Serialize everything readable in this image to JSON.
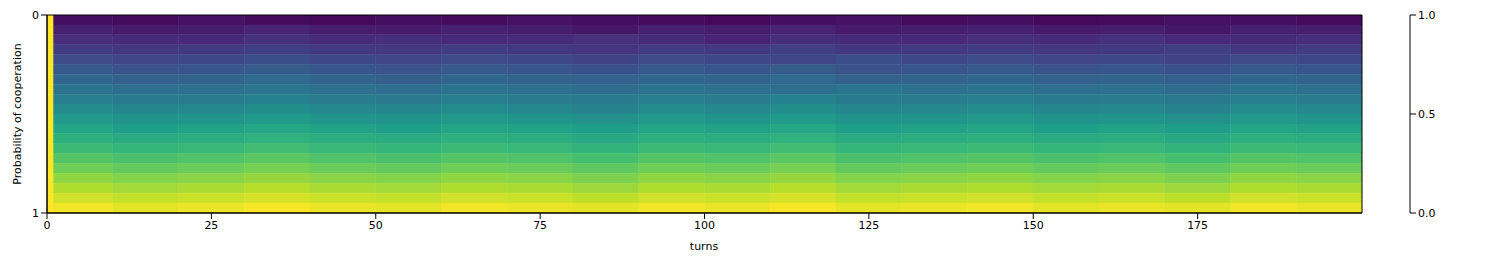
{
  "chart_data": {
    "type": "heatmap",
    "x_label": "turns",
    "y_label": "Probability of cooperation",
    "xlim": [
      0,
      200
    ],
    "xticks": [
      0,
      25,
      50,
      75,
      100,
      125,
      150,
      175
    ],
    "ylim": [
      0,
      1
    ],
    "yticks": [
      0,
      1
    ],
    "x_edges": [
      0,
      1,
      10,
      20,
      30,
      40,
      50,
      60,
      70,
      80,
      90,
      100,
      110,
      120,
      130,
      140,
      150,
      160,
      170,
      180,
      190,
      200
    ],
    "y_edges": [
      0,
      0.05,
      0.1,
      0.15,
      0.2,
      0.25,
      0.3,
      0.35,
      0.4,
      0.45,
      0.5,
      0.55,
      0.6,
      0.65,
      0.7,
      0.75,
      0.8,
      0.85,
      0.9,
      0.95,
      1
    ],
    "cells": [
      [
        1.0,
        0.04,
        0.03,
        0.05,
        0.03,
        0.02,
        0.04,
        0.03,
        0.05,
        0.04,
        0.03,
        0.02,
        0.04,
        0.05,
        0.03,
        0.04,
        0.02,
        0.03,
        0.05,
        0.04,
        0.03
      ],
      [
        1.0,
        0.09,
        0.07,
        0.08,
        0.1,
        0.08,
        0.07,
        0.09,
        0.08,
        0.06,
        0.09,
        0.08,
        0.1,
        0.07,
        0.08,
        0.09,
        0.07,
        0.08,
        0.06,
        0.09,
        0.08
      ],
      [
        1.0,
        0.13,
        0.12,
        0.11,
        0.14,
        0.12,
        0.13,
        0.11,
        0.12,
        0.14,
        0.12,
        0.1,
        0.13,
        0.12,
        0.11,
        0.13,
        0.12,
        0.14,
        0.11,
        0.12,
        0.13
      ],
      [
        1.0,
        0.18,
        0.16,
        0.17,
        0.19,
        0.17,
        0.16,
        0.18,
        0.17,
        0.15,
        0.18,
        0.17,
        0.19,
        0.16,
        0.17,
        0.18,
        0.16,
        0.17,
        0.19,
        0.16,
        0.18
      ],
      [
        1.0,
        0.23,
        0.21,
        0.22,
        0.24,
        0.22,
        0.21,
        0.23,
        0.22,
        0.2,
        0.23,
        0.22,
        0.21,
        0.24,
        0.22,
        0.23,
        0.21,
        0.22,
        0.2,
        0.23,
        0.22
      ],
      [
        1.0,
        0.28,
        0.26,
        0.27,
        0.29,
        0.27,
        0.26,
        0.28,
        0.27,
        0.25,
        0.28,
        0.27,
        0.29,
        0.26,
        0.27,
        0.28,
        0.26,
        0.27,
        0.25,
        0.28,
        0.27
      ],
      [
        1.0,
        0.33,
        0.31,
        0.32,
        0.34,
        0.32,
        0.3,
        0.33,
        0.32,
        0.31,
        0.33,
        0.32,
        0.34,
        0.31,
        0.32,
        0.33,
        0.31,
        0.32,
        0.3,
        0.33,
        0.32
      ],
      [
        1.0,
        0.38,
        0.36,
        0.37,
        0.39,
        0.37,
        0.36,
        0.38,
        0.37,
        0.35,
        0.38,
        0.37,
        0.36,
        0.39,
        0.37,
        0.38,
        0.36,
        0.37,
        0.35,
        0.38,
        0.37
      ],
      [
        1.0,
        0.43,
        0.41,
        0.42,
        0.44,
        0.42,
        0.4,
        0.43,
        0.42,
        0.41,
        0.43,
        0.42,
        0.44,
        0.41,
        0.42,
        0.43,
        0.41,
        0.42,
        0.4,
        0.43,
        0.42
      ],
      [
        1.0,
        0.48,
        0.46,
        0.47,
        0.49,
        0.47,
        0.46,
        0.48,
        0.47,
        0.45,
        0.48,
        0.47,
        0.49,
        0.46,
        0.47,
        0.48,
        0.46,
        0.47,
        0.45,
        0.48,
        0.47
      ],
      [
        1.0,
        0.53,
        0.51,
        0.52,
        0.54,
        0.52,
        0.51,
        0.53,
        0.52,
        0.5,
        0.53,
        0.52,
        0.54,
        0.51,
        0.52,
        0.53,
        0.51,
        0.52,
        0.5,
        0.53,
        0.52
      ],
      [
        1.0,
        0.58,
        0.56,
        0.57,
        0.59,
        0.57,
        0.56,
        0.58,
        0.57,
        0.55,
        0.58,
        0.57,
        0.59,
        0.56,
        0.57,
        0.58,
        0.56,
        0.57,
        0.55,
        0.58,
        0.57
      ],
      [
        1.0,
        0.63,
        0.61,
        0.62,
        0.64,
        0.62,
        0.61,
        0.63,
        0.62,
        0.6,
        0.63,
        0.62,
        0.64,
        0.61,
        0.62,
        0.63,
        0.61,
        0.62,
        0.6,
        0.63,
        0.62
      ],
      [
        1.0,
        0.68,
        0.66,
        0.67,
        0.69,
        0.67,
        0.66,
        0.68,
        0.67,
        0.65,
        0.68,
        0.67,
        0.69,
        0.66,
        0.67,
        0.68,
        0.66,
        0.67,
        0.65,
        0.68,
        0.67
      ],
      [
        1.0,
        0.73,
        0.71,
        0.72,
        0.74,
        0.72,
        0.71,
        0.73,
        0.72,
        0.7,
        0.73,
        0.72,
        0.74,
        0.71,
        0.72,
        0.73,
        0.71,
        0.72,
        0.7,
        0.73,
        0.72
      ],
      [
        1.0,
        0.78,
        0.76,
        0.77,
        0.79,
        0.77,
        0.76,
        0.78,
        0.77,
        0.75,
        0.78,
        0.77,
        0.79,
        0.76,
        0.77,
        0.78,
        0.76,
        0.77,
        0.75,
        0.78,
        0.77
      ],
      [
        1.0,
        0.83,
        0.81,
        0.82,
        0.84,
        0.82,
        0.81,
        0.83,
        0.82,
        0.8,
        0.83,
        0.82,
        0.84,
        0.81,
        0.82,
        0.83,
        0.81,
        0.82,
        0.8,
        0.83,
        0.82
      ],
      [
        1.0,
        0.88,
        0.86,
        0.87,
        0.89,
        0.87,
        0.86,
        0.88,
        0.87,
        0.85,
        0.88,
        0.87,
        0.89,
        0.86,
        0.87,
        0.88,
        0.86,
        0.87,
        0.85,
        0.88,
        0.87
      ],
      [
        1.0,
        0.93,
        0.91,
        0.92,
        0.94,
        0.92,
        0.91,
        0.93,
        0.92,
        0.9,
        0.93,
        0.92,
        0.94,
        0.91,
        0.92,
        0.93,
        0.91,
        0.92,
        0.9,
        0.93,
        0.92
      ],
      [
        1.0,
        0.98,
        0.96,
        0.97,
        0.99,
        0.97,
        0.96,
        0.98,
        0.97,
        0.96,
        0.98,
        0.97,
        0.99,
        0.96,
        0.97,
        0.98,
        0.96,
        0.97,
        0.96,
        0.98,
        0.97
      ]
    ],
    "colorbar": {
      "range": [
        0,
        1
      ],
      "ticks": [
        {
          "value": 0,
          "label": "0.0"
        },
        {
          "value": 0.5,
          "label": "0.5"
        },
        {
          "value": 1,
          "label": "1.0"
        }
      ]
    }
  }
}
